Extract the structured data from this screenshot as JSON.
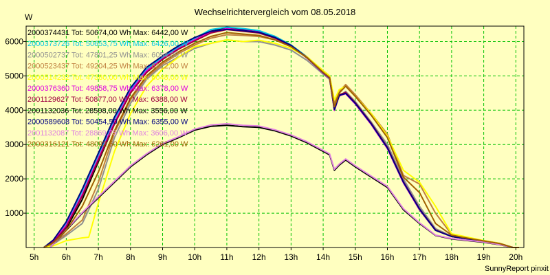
{
  "chart_data": {
    "type": "line",
    "title": "Wechselrichtervergleich vom 08.05.2018",
    "ylabel": "W",
    "xlabel": "",
    "footer": "SunnyReport pinxit",
    "x_ticks": [
      "5h",
      "6h",
      "7h",
      "8h",
      "9h",
      "10h",
      "11h",
      "12h",
      "13h",
      "14h",
      "15h",
      "16h",
      "17h",
      "18h",
      "19h",
      "20h"
    ],
    "y_ticks": [
      1000,
      2000,
      3000,
      4000,
      5000,
      6000
    ],
    "xlim": [
      4.75,
      20.25
    ],
    "ylim": [
      0,
      6450
    ],
    "grid": true,
    "legend_position": "top-left",
    "colors": {
      "background": "#ffffc0",
      "grid": "#00c000",
      "frame": "#000000"
    },
    "series": [
      {
        "name": "2000374431 Tot: 50674,00 Wh Max: 6442,00 W",
        "color": "#000000",
        "group": "full",
        "x": [
          5.3,
          5.6,
          6.0,
          6.5,
          7.0,
          7.5,
          8.0,
          8.5,
          9.0,
          9.5,
          10.0,
          10.5,
          11.0,
          11.5,
          12.0,
          12.5,
          13.0,
          13.5,
          14.0,
          14.2,
          14.35,
          14.5,
          14.7,
          15.0,
          15.5,
          16.0,
          16.5,
          17.0,
          17.5,
          18.0,
          18.5,
          19.0,
          19.5,
          19.9,
          20.1
        ],
        "y": [
          0,
          150,
          550,
          1400,
          2500,
          3600,
          4500,
          5100,
          5500,
          5800,
          6050,
          6300,
          6400,
          6350,
          6300,
          6150,
          5900,
          5550,
          5100,
          4950,
          4000,
          4450,
          4500,
          4200,
          3600,
          2900,
          1900,
          1100,
          500,
          320,
          250,
          180,
          110,
          0,
          0
        ]
      },
      {
        "name": "2000373726 Tot: 50653,75 Wh Max: 6426,00 W",
        "color": "#00c8e8",
        "group": "full",
        "x": [
          5.3,
          5.6,
          6.0,
          6.5,
          7.0,
          7.5,
          8.0,
          8.5,
          9.0,
          9.5,
          10.0,
          10.5,
          11.0,
          11.5,
          12.0,
          12.5,
          13.0,
          13.5,
          14.0,
          14.2,
          14.35,
          14.5,
          14.7,
          15.0,
          15.5,
          16.0,
          16.5,
          17.0,
          17.5,
          18.0,
          18.5,
          19.0,
          19.5,
          19.9,
          20.1
        ],
        "y": [
          0,
          200,
          700,
          1650,
          2700,
          3750,
          4600,
          5200,
          5550,
          5850,
          6100,
          6350,
          6420,
          6380,
          6320,
          6150,
          5900,
          5550,
          5100,
          4950,
          4050,
          4450,
          4500,
          4250,
          3650,
          2950,
          1950,
          1150,
          520,
          330,
          250,
          180,
          110,
          0,
          0
        ]
      },
      {
        "name": "2000502737 Tot: 47801,25 Wh Max: 6054,00 W",
        "color": "#909090",
        "group": "full",
        "x": [
          5.3,
          5.6,
          6.0,
          6.5,
          7.0,
          7.5,
          8.0,
          8.5,
          9.0,
          9.5,
          10.0,
          10.5,
          11.0,
          11.5,
          12.0,
          12.5,
          13.0,
          13.5,
          14.0,
          14.2,
          14.35,
          14.5,
          14.7,
          15.0,
          15.5,
          16.0,
          16.5,
          17.0,
          17.5,
          18.0,
          18.5,
          19.0,
          19.5,
          19.9,
          20.1
        ],
        "y": [
          0,
          100,
          350,
          700,
          1700,
          3200,
          4200,
          4900,
          5300,
          5550,
          5800,
          5950,
          6050,
          6000,
          6000,
          5900,
          5750,
          5450,
          5050,
          4900,
          4050,
          4400,
          4550,
          4250,
          3650,
          3000,
          2000,
          1200,
          550,
          330,
          250,
          180,
          110,
          0,
          0
        ]
      },
      {
        "name": "2000523437 Tot: 49204,25 Wh Max: 6212,00 W",
        "color": "#c08040",
        "group": "full",
        "x": [
          5.3,
          5.6,
          6.0,
          6.5,
          7.0,
          7.5,
          8.0,
          8.5,
          9.0,
          9.5,
          10.0,
          10.5,
          11.0,
          11.5,
          12.0,
          12.5,
          13.0,
          13.5,
          14.0,
          14.2,
          14.35,
          14.5,
          14.7,
          15.0,
          15.5,
          16.0,
          16.5,
          17.0,
          17.5,
          18.0,
          18.5,
          19.0,
          19.5,
          19.9,
          20.1
        ],
        "y": [
          0,
          120,
          400,
          800,
          1900,
          3350,
          4300,
          4950,
          5350,
          5650,
          5900,
          6100,
          6200,
          6180,
          6150,
          6050,
          5850,
          5550,
          5150,
          5000,
          4200,
          4550,
          4750,
          4450,
          3900,
          3300,
          2100,
          1850,
          1000,
          380,
          280,
          200,
          120,
          0,
          0
        ]
      },
      {
        "name": "2000514232 Tot: 47380,00 Wh Max: 6048,00 W",
        "color": "#ffff00",
        "group": "full",
        "x": [
          5.3,
          5.6,
          6.0,
          6.5,
          6.7,
          7.0,
          7.5,
          8.0,
          8.5,
          9.0,
          9.5,
          10.0,
          10.5,
          11.0,
          11.5,
          12.0,
          12.5,
          13.0,
          13.5,
          14.0,
          14.2,
          14.35,
          14.5,
          14.7,
          15.0,
          15.5,
          16.0,
          16.5,
          17.0,
          17.5,
          18.0,
          18.5,
          19.0,
          19.5,
          19.9,
          20.1
        ],
        "y": [
          0,
          50,
          200,
          280,
          300,
          1300,
          2800,
          3900,
          4700,
          5200,
          5550,
          5850,
          5950,
          6050,
          6000,
          6040,
          5950,
          5800,
          5550,
          5150,
          5000,
          4300,
          4600,
          4700,
          4400,
          3900,
          3250,
          2250,
          1900,
          1200,
          400,
          300,
          200,
          120,
          0,
          0
        ]
      },
      {
        "name": "2000376360 Tot: 49858,75 Wh Max: 6378,00 W",
        "color": "#e000e0",
        "group": "full",
        "x": [
          5.3,
          5.6,
          6.0,
          6.5,
          7.0,
          7.5,
          8.0,
          8.5,
          9.0,
          9.5,
          10.0,
          10.5,
          11.0,
          11.5,
          12.0,
          12.5,
          13.0,
          13.5,
          14.0,
          14.2,
          14.35,
          14.5,
          14.7,
          15.0,
          15.5,
          16.0,
          16.5,
          17.0,
          17.5,
          18.0,
          18.5,
          19.0,
          19.5,
          19.9,
          20.1
        ],
        "y": [
          0,
          180,
          650,
          1550,
          2600,
          3650,
          4550,
          5150,
          5500,
          5800,
          6050,
          6280,
          6378,
          6330,
          6280,
          6100,
          5880,
          5520,
          5080,
          4930,
          4000,
          4420,
          4480,
          4180,
          3580,
          2880,
          1880,
          1100,
          500,
          320,
          250,
          180,
          110,
          0,
          0
        ]
      },
      {
        "name": "2001129627 Tot: 50877,00 Wh Max: 6388,00 W",
        "color": "#a00040",
        "group": "full",
        "x": [
          5.3,
          5.6,
          6.0,
          6.5,
          7.0,
          7.5,
          8.0,
          8.5,
          9.0,
          9.5,
          10.0,
          10.5,
          11.0,
          11.5,
          12.0,
          12.5,
          13.0,
          13.5,
          14.0,
          14.2,
          14.35,
          14.5,
          14.7,
          15.0,
          15.5,
          16.0,
          16.5,
          17.0,
          17.5,
          18.0,
          18.5,
          19.0,
          19.5,
          19.9,
          20.1
        ],
        "y": [
          0,
          160,
          600,
          1500,
          2550,
          3600,
          4500,
          5100,
          5480,
          5780,
          6020,
          6250,
          6350,
          6300,
          6250,
          6100,
          5880,
          5520,
          5100,
          4950,
          4050,
          4450,
          4520,
          4220,
          3620,
          2920,
          1920,
          1130,
          510,
          320,
          250,
          180,
          110,
          0,
          0
        ]
      },
      {
        "name": "2001132036 Tot: 28508,00 Wh Max: 3556,00 W",
        "color": "#000000",
        "group": "half",
        "x": [
          5.5,
          6.0,
          6.5,
          7.0,
          7.5,
          8.0,
          8.5,
          9.0,
          9.5,
          10.0,
          10.5,
          11.0,
          11.5,
          12.0,
          12.5,
          13.0,
          13.5,
          14.0,
          14.2,
          14.35,
          14.5,
          14.7,
          15.0,
          15.5,
          16.0,
          16.5,
          17.0,
          17.5,
          18.0,
          18.5,
          19.0,
          19.5,
          19.9,
          20.1
        ],
        "y": [
          0,
          500,
          1000,
          1450,
          1900,
          2350,
          2700,
          3000,
          3200,
          3420,
          3530,
          3560,
          3520,
          3500,
          3400,
          3250,
          3050,
          2800,
          2700,
          2250,
          2400,
          2550,
          2350,
          2050,
          1750,
          1100,
          700,
          350,
          250,
          200,
          150,
          80,
          0,
          0
        ]
      },
      {
        "name": "2000589608 Tot: 50454,50 Wh Max: 6355,00 W",
        "color": "#000080",
        "group": "full",
        "x": [
          5.3,
          5.6,
          6.0,
          6.5,
          7.0,
          7.5,
          8.0,
          8.5,
          9.0,
          9.5,
          10.0,
          10.5,
          11.0,
          11.5,
          12.0,
          12.5,
          13.0,
          13.5,
          14.0,
          14.2,
          14.35,
          14.5,
          14.7,
          15.0,
          15.5,
          16.0,
          16.5,
          17.0,
          17.5,
          18.0,
          18.5,
          19.0,
          19.5,
          19.9,
          20.1
        ],
        "y": [
          0,
          220,
          750,
          1700,
          2750,
          3800,
          4650,
          5250,
          5580,
          5880,
          6120,
          6300,
          6355,
          6320,
          6270,
          6120,
          5890,
          5530,
          5090,
          4940,
          4020,
          4430,
          4490,
          4200,
          3600,
          2900,
          1900,
          1120,
          500,
          320,
          250,
          180,
          110,
          0,
          0
        ]
      },
      {
        "name": "2001132087 Tot: 28869,75 Wh Max: 3606,00 W",
        "color": "#e080e0",
        "group": "half",
        "x": [
          5.5,
          6.0,
          6.5,
          7.0,
          7.5,
          8.0,
          8.5,
          9.0,
          9.5,
          10.0,
          10.5,
          11.0,
          11.5,
          12.0,
          12.5,
          13.0,
          13.5,
          14.0,
          14.2,
          14.35,
          14.5,
          14.7,
          15.0,
          15.5,
          16.0,
          16.5,
          17.0,
          17.5,
          18.0,
          18.5,
          19.0,
          19.5,
          19.9,
          20.1
        ],
        "y": [
          0,
          520,
          1020,
          1480,
          1930,
          2380,
          2730,
          3030,
          3230,
          3450,
          3570,
          3606,
          3560,
          3540,
          3430,
          3280,
          3080,
          2830,
          2730,
          2280,
          2430,
          2580,
          2380,
          2080,
          1780,
          1130,
          720,
          360,
          260,
          210,
          160,
          85,
          0,
          0
        ]
      },
      {
        "name": "2000316121 Tot: 48092,50 Wh Max: 6261,00 W",
        "color": "#a06000",
        "group": "full",
        "x": [
          5.3,
          5.6,
          6.0,
          6.5,
          7.0,
          7.5,
          8.0,
          8.5,
          9.0,
          9.5,
          10.0,
          10.5,
          11.0,
          11.5,
          12.0,
          12.5,
          13.0,
          13.5,
          14.0,
          14.2,
          14.35,
          14.5,
          14.7,
          15.0,
          15.5,
          16.0,
          16.5,
          17.0,
          17.5,
          18.0,
          18.5,
          19.0,
          19.5,
          19.9,
          20.1
        ],
        "y": [
          0,
          140,
          500,
          1200,
          2200,
          3400,
          4350,
          5000,
          5400,
          5700,
          5950,
          6150,
          6261,
          6220,
          6180,
          6050,
          5850,
          5530,
          5100,
          4950,
          4100,
          4500,
          4700,
          4400,
          3850,
          3200,
          2050,
          1600,
          700,
          360,
          270,
          190,
          115,
          0,
          0
        ]
      }
    ]
  }
}
